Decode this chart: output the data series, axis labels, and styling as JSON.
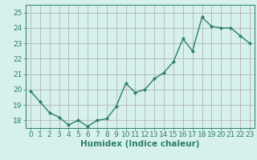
{
  "x": [
    0,
    1,
    2,
    3,
    4,
    5,
    6,
    7,
    8,
    9,
    10,
    11,
    12,
    13,
    14,
    15,
    16,
    17,
    18,
    19,
    20,
    21,
    22,
    23
  ],
  "y": [
    19.9,
    19.2,
    18.5,
    18.2,
    17.7,
    18.0,
    17.6,
    18.0,
    18.1,
    18.9,
    20.4,
    19.8,
    20.0,
    20.7,
    21.1,
    21.8,
    23.3,
    22.5,
    24.7,
    24.1,
    24.0,
    24.0,
    23.5,
    23.0
  ],
  "line_color": "#2e7d6e",
  "marker": "D",
  "marker_size": 2.0,
  "line_width": 1.0,
  "bg_color": "#d6f0ec",
  "grid_color": "#aaaaaa",
  "tick_color": "#2e7d6e",
  "label_color": "#2e7d6e",
  "xlabel": "Humidex (Indice chaleur)",
  "xlim": [
    -0.5,
    23.5
  ],
  "ylim": [
    17.5,
    25.5
  ],
  "yticks": [
    18,
    19,
    20,
    21,
    22,
    23,
    24,
    25
  ],
  "xticks": [
    0,
    1,
    2,
    3,
    4,
    5,
    6,
    7,
    8,
    9,
    10,
    11,
    12,
    13,
    14,
    15,
    16,
    17,
    18,
    19,
    20,
    21,
    22,
    23
  ],
  "font_size": 6.5,
  "xlabel_fontsize": 7.5
}
